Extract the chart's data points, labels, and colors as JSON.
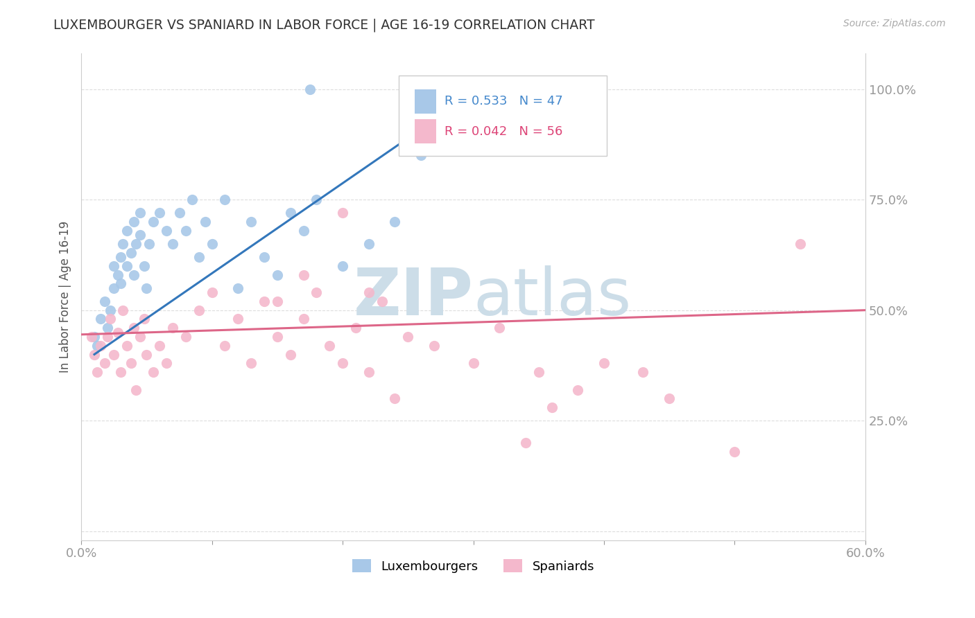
{
  "title": "LUXEMBOURGER VS SPANIARD IN LABOR FORCE | AGE 16-19 CORRELATION CHART",
  "source_text": "Source: ZipAtlas.com",
  "ylabel": "In Labor Force | Age 16-19",
  "xlim": [
    0.0,
    0.6
  ],
  "ylim": [
    -0.02,
    1.08
  ],
  "x_ticks": [
    0.0,
    0.1,
    0.2,
    0.3,
    0.4,
    0.5,
    0.6
  ],
  "x_tick_labels": [
    "0.0%",
    "",
    "",
    "",
    "",
    "",
    "60.0%"
  ],
  "y_ticks": [
    0.0,
    0.25,
    0.5,
    0.75,
    1.0
  ],
  "y_tick_labels": [
    "",
    "25.0%",
    "50.0%",
    "75.0%",
    "100.0%"
  ],
  "lux_color": "#a8c8e8",
  "spa_color": "#f4b8cc",
  "lux_R": 0.533,
  "lux_N": 47,
  "spa_R": 0.042,
  "spa_N": 56,
  "legend_R_color": "#4488cc",
  "legend_N_color": "#dd4477",
  "watermark_zip": "ZIP",
  "watermark_atlas": "atlas",
  "watermark_color": "#ccdde8",
  "lux_scatter_x": [
    0.01,
    0.012,
    0.015,
    0.018,
    0.02,
    0.022,
    0.025,
    0.025,
    0.028,
    0.03,
    0.03,
    0.032,
    0.035,
    0.035,
    0.038,
    0.04,
    0.04,
    0.042,
    0.045,
    0.045,
    0.048,
    0.05,
    0.052,
    0.055,
    0.06,
    0.065,
    0.07,
    0.075,
    0.08,
    0.085,
    0.09,
    0.095,
    0.1,
    0.11,
    0.12,
    0.13,
    0.14,
    0.15,
    0.16,
    0.17,
    0.18,
    0.2,
    0.22,
    0.24,
    0.26,
    0.28,
    0.175
  ],
  "lux_scatter_y": [
    0.44,
    0.42,
    0.48,
    0.52,
    0.46,
    0.5,
    0.55,
    0.6,
    0.58,
    0.62,
    0.56,
    0.65,
    0.6,
    0.68,
    0.63,
    0.58,
    0.7,
    0.65,
    0.72,
    0.67,
    0.6,
    0.55,
    0.65,
    0.7,
    0.72,
    0.68,
    0.65,
    0.72,
    0.68,
    0.75,
    0.62,
    0.7,
    0.65,
    0.75,
    0.55,
    0.7,
    0.62,
    0.58,
    0.72,
    0.68,
    0.75,
    0.6,
    0.65,
    0.7,
    0.85,
    0.9,
    1.0
  ],
  "spa_scatter_x": [
    0.008,
    0.01,
    0.012,
    0.015,
    0.018,
    0.02,
    0.022,
    0.025,
    0.028,
    0.03,
    0.032,
    0.035,
    0.038,
    0.04,
    0.042,
    0.045,
    0.048,
    0.05,
    0.055,
    0.06,
    0.065,
    0.07,
    0.08,
    0.09,
    0.1,
    0.11,
    0.12,
    0.13,
    0.14,
    0.15,
    0.16,
    0.17,
    0.18,
    0.19,
    0.2,
    0.21,
    0.22,
    0.23,
    0.25,
    0.27,
    0.3,
    0.32,
    0.35,
    0.38,
    0.4,
    0.43,
    0.34,
    0.36,
    0.2,
    0.22,
    0.24,
    0.15,
    0.17,
    0.45,
    0.5,
    0.55
  ],
  "spa_scatter_y": [
    0.44,
    0.4,
    0.36,
    0.42,
    0.38,
    0.44,
    0.48,
    0.4,
    0.45,
    0.36,
    0.5,
    0.42,
    0.38,
    0.46,
    0.32,
    0.44,
    0.48,
    0.4,
    0.36,
    0.42,
    0.38,
    0.46,
    0.44,
    0.5,
    0.54,
    0.42,
    0.48,
    0.38,
    0.52,
    0.44,
    0.4,
    0.48,
    0.54,
    0.42,
    0.38,
    0.46,
    0.36,
    0.52,
    0.44,
    0.42,
    0.38,
    0.46,
    0.36,
    0.32,
    0.38,
    0.36,
    0.2,
    0.28,
    0.72,
    0.54,
    0.3,
    0.52,
    0.58,
    0.3,
    0.18,
    0.65
  ],
  "lux_line_x": [
    0.01,
    0.28
  ],
  "lux_line_y": [
    0.4,
    0.95
  ],
  "spa_line_x": [
    0.0,
    0.6
  ],
  "spa_line_y": [
    0.445,
    0.5
  ],
  "background_color": "#ffffff",
  "grid_color": "#dddddd",
  "title_color": "#333333",
  "axis_label_color": "#555555",
  "tick_color": "#4488cc",
  "lux_line_color": "#3377bb",
  "spa_line_color": "#dd6688"
}
